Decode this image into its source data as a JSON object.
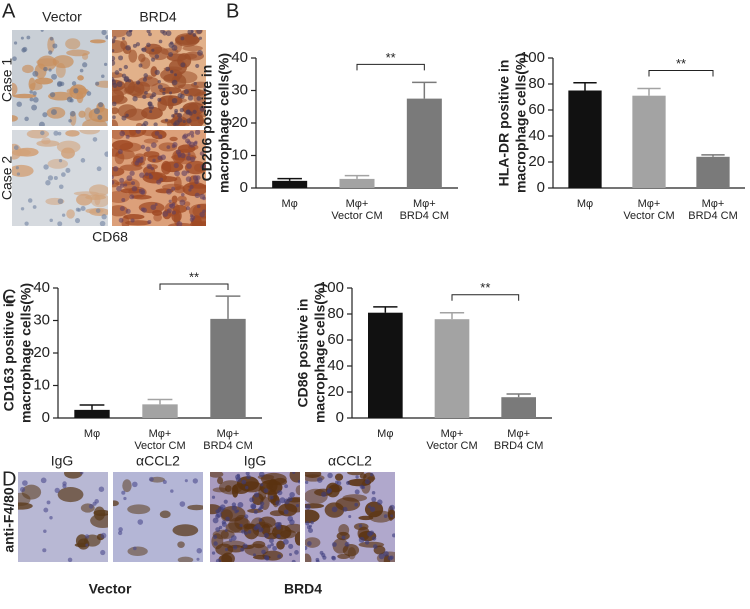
{
  "panels": {
    "A": {
      "letter": "A",
      "columns": [
        "Vector",
        "BRD4"
      ],
      "rows": [
        "Case 1",
        "Case 2"
      ],
      "caption": "CD68"
    },
    "B": {
      "letter": "B"
    },
    "C": {
      "letter": "C"
    },
    "D": {
      "letter": "D",
      "columns": [
        "IgG",
        "αCCL2",
        "IgG",
        "αCCL2"
      ],
      "row": "anti-F4/80",
      "groups": [
        "Vector",
        "BRD4"
      ]
    }
  },
  "chart_data": [
    {
      "type": "bar",
      "ylabel": [
        "CD206 positive in",
        "macrophage cells(%)"
      ],
      "categories": [
        [
          "Mφ"
        ],
        [
          "Mφ+",
          "Vector CM"
        ],
        [
          "Mφ+",
          "BRD4 CM"
        ]
      ],
      "values": [
        2.2,
        2.8,
        27.5
      ],
      "errors": [
        0.7,
        1.0,
        5.0
      ],
      "colors": [
        "#111111",
        "#a3a3a3",
        "#7a7a7a"
      ],
      "annotation": "**",
      "ylim": [
        0,
        40
      ],
      "yticks": [
        0,
        10,
        20,
        30,
        40
      ]
    },
    {
      "type": "bar",
      "ylabel": [
        "HLA-DR positive in",
        "macrophage cells(%)"
      ],
      "categories": [
        [
          "Mφ"
        ],
        [
          "Mφ+",
          "Vector CM"
        ],
        [
          "Mφ+",
          "BRD4 CM"
        ]
      ],
      "values": [
        75,
        71,
        24
      ],
      "errors": [
        6,
        5.5,
        1.5
      ],
      "colors": [
        "#111111",
        "#a3a3a3",
        "#7a7a7a"
      ],
      "annotation": "**",
      "ylim": [
        0,
        100
      ],
      "yticks": [
        0,
        20,
        40,
        60,
        80,
        100
      ]
    },
    {
      "type": "bar",
      "ylabel": [
        "CD163 positive in",
        "macrophage cells(%)"
      ],
      "categories": [
        [
          "Mφ"
        ],
        [
          "Mφ+",
          "Vector CM"
        ],
        [
          "Mφ+",
          "BRD4 CM"
        ]
      ],
      "values": [
        2.5,
        4.2,
        30.5
      ],
      "errors": [
        1.5,
        1.5,
        7
      ],
      "colors": [
        "#111111",
        "#a3a3a3",
        "#7a7a7a"
      ],
      "annotation": "**",
      "ylim": [
        0,
        40
      ],
      "yticks": [
        0,
        10,
        20,
        30,
        40
      ]
    },
    {
      "type": "bar",
      "ylabel": [
        "CD86 positive in",
        "macrophage cells(%)"
      ],
      "categories": [
        [
          "Mφ"
        ],
        [
          "Mφ+",
          "Vector CM"
        ],
        [
          "Mφ+",
          "BRD4 CM"
        ]
      ],
      "values": [
        81,
        76,
        16
      ],
      "errors": [
        4.5,
        5,
        2.5
      ],
      "colors": [
        "#111111",
        "#a3a3a3",
        "#7a7a7a"
      ],
      "annotation": "**",
      "ylim": [
        0,
        100
      ],
      "yticks": [
        0,
        20,
        40,
        60,
        80,
        100
      ]
    }
  ]
}
